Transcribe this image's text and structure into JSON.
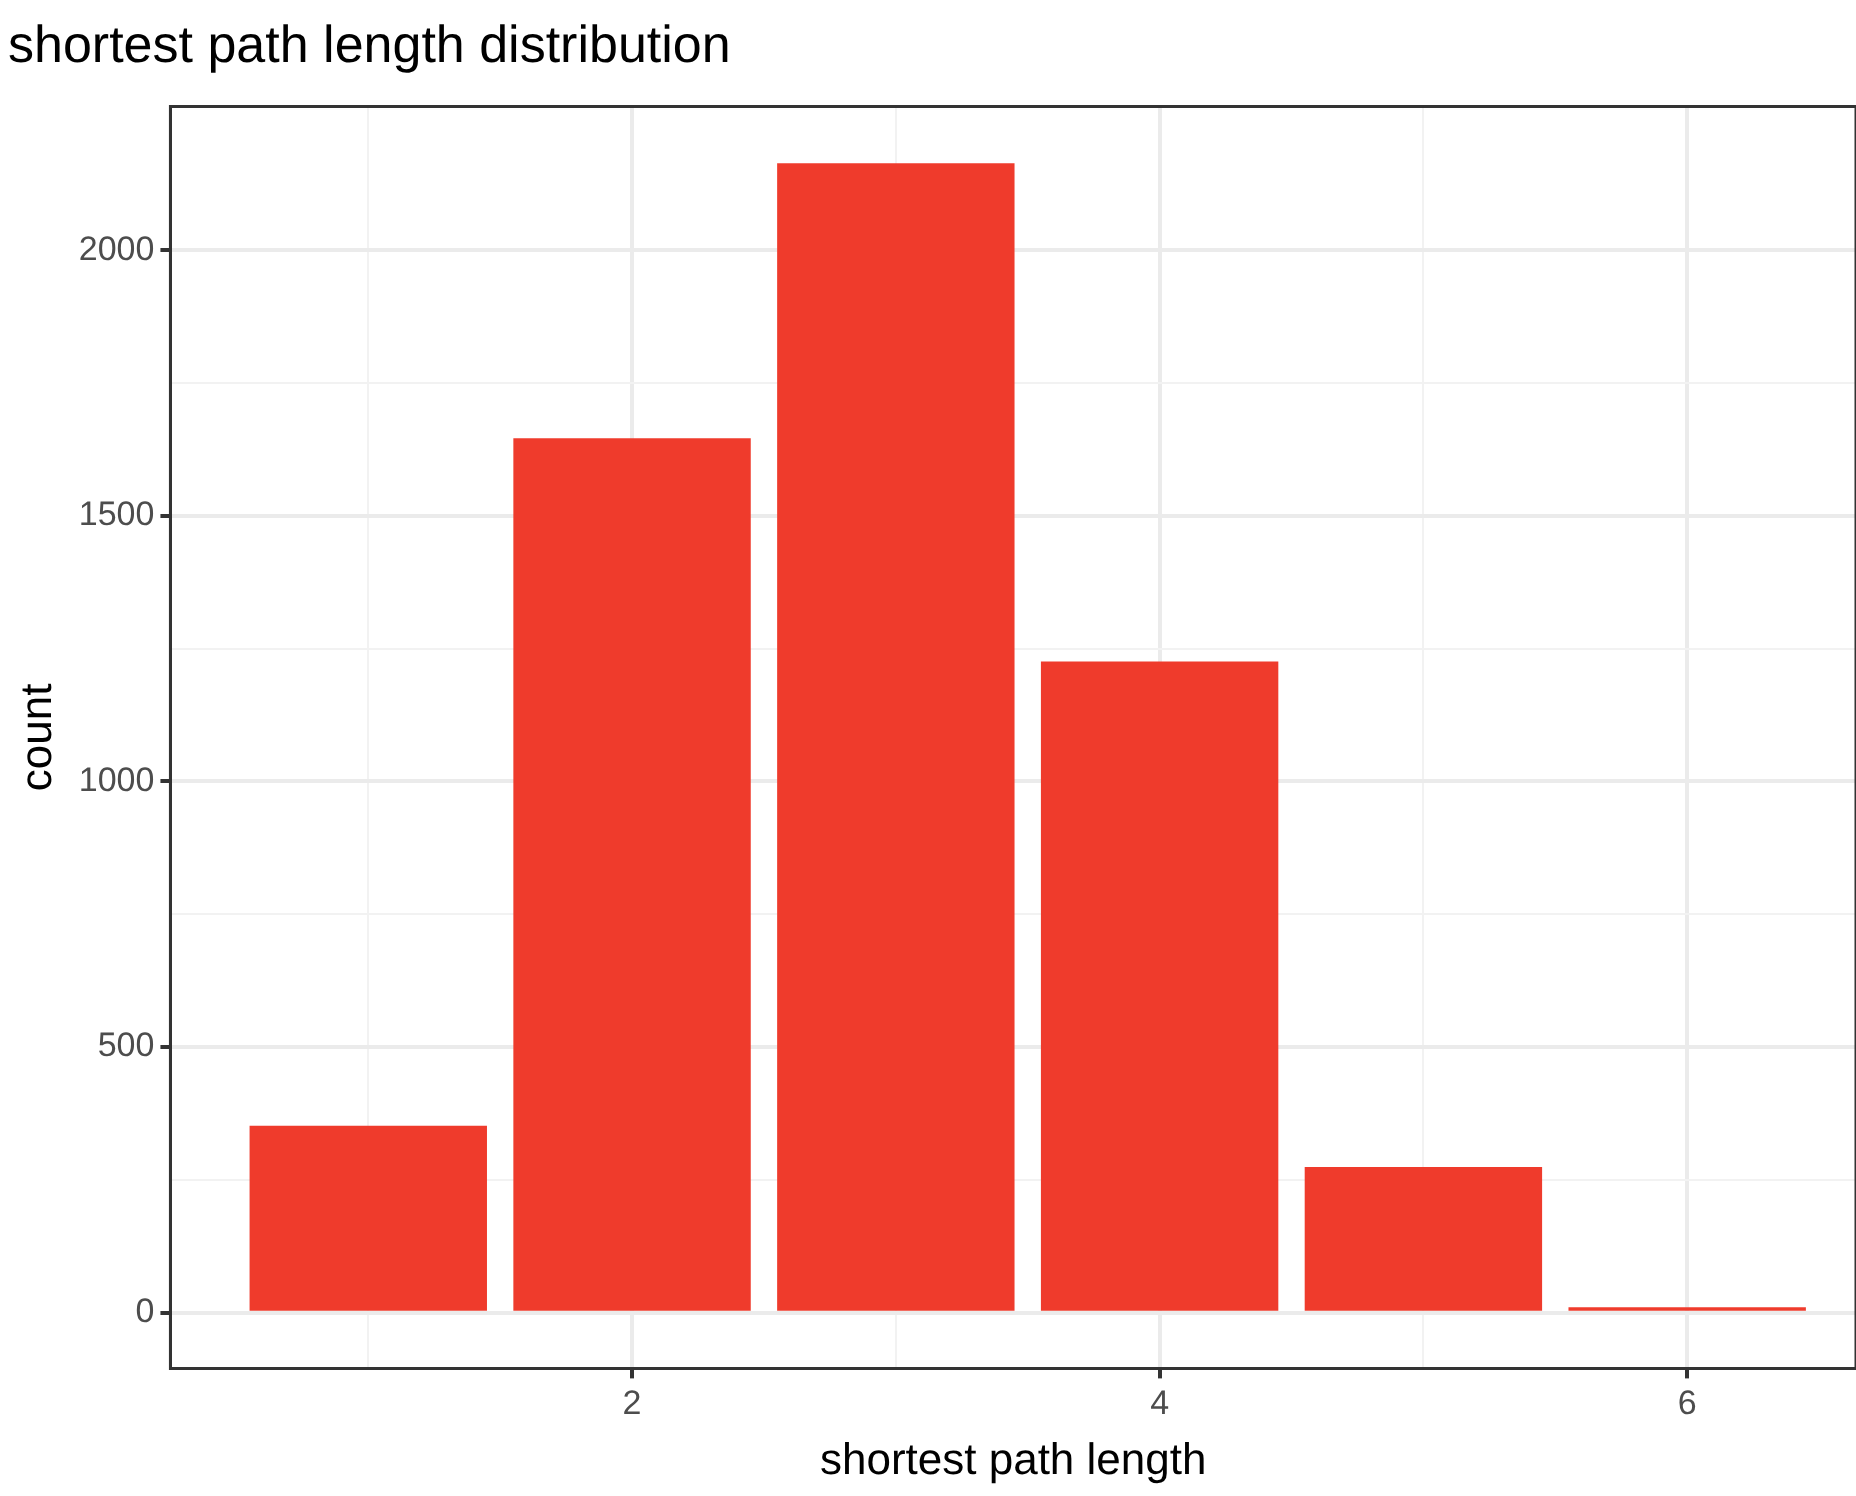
{
  "chart_data": {
    "type": "bar",
    "title": "shortest path length distribution",
    "xlabel": "shortest path length",
    "ylabel": "count",
    "x": [
      1,
      2,
      3,
      4,
      5,
      6
    ],
    "values": [
      352,
      1646,
      2164,
      1226,
      274,
      10
    ],
    "color": "#ef3b2c",
    "xlim": [
      0.25,
      6.64
    ],
    "xticks": [
      {
        "value": 1,
        "label": null
      },
      2,
      {
        "value": 3,
        "label": null
      },
      4,
      {
        "value": 5,
        "label": null
      },
      6
    ],
    "ylim": [
      -105,
      2271
    ],
    "yticks": [
      0,
      {
        "value": 250,
        "label": null
      },
      500,
      {
        "value": 750,
        "label": null
      },
      1000,
      {
        "value": 1250,
        "label": null
      },
      1500,
      {
        "value": 1750,
        "label": null
      },
      2000
    ],
    "grid": true
  }
}
